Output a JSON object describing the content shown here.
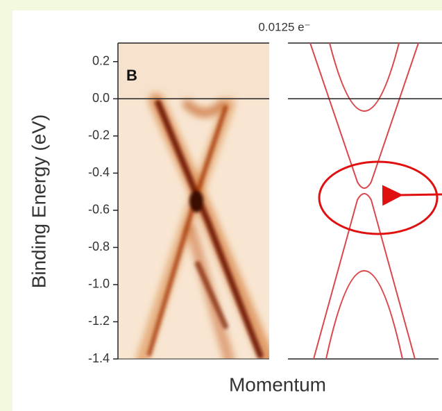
{
  "chart_data": {
    "type": "band",
    "title": "0.0125 e⁻",
    "panel_label": "B",
    "ylabel": "Binding Energy (eV)",
    "xlabel": "Momentum",
    "ylim": [
      -1.4,
      0.3
    ],
    "yticks": [
      0.2,
      {
        "value": 0,
        "label": "0.0"
      },
      -0.2,
      -0.4,
      -0.6,
      -0.8,
      {
        "value": -1,
        "label": "-1.0"
      },
      -1.2,
      -1.4
    ],
    "band_color": "#d9474b"
  }
}
